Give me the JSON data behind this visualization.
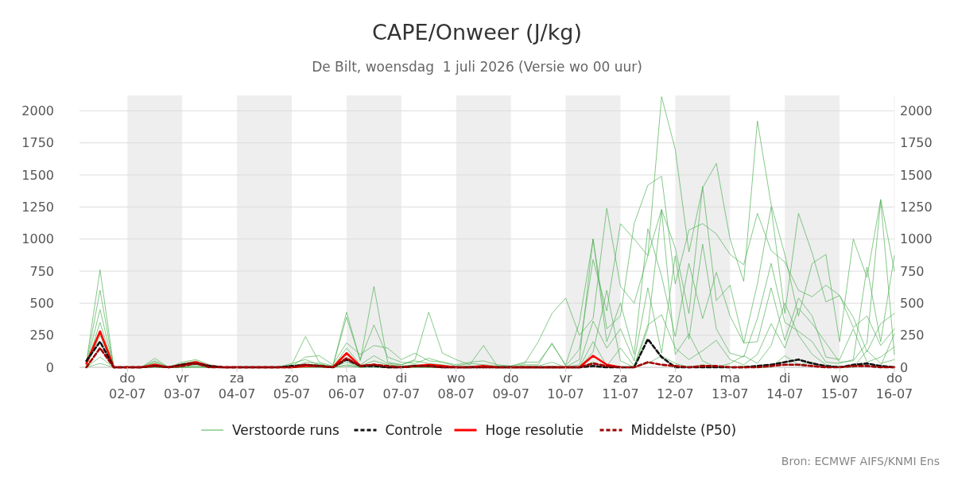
{
  "chart_data": {
    "type": "line",
    "title": "CAPE/Onweer (J/kg)",
    "subtitle": "De Bilt, woensdag  1 juli 2026 (Versie wo 00 uur)",
    "annotations": [
      "Bron: ECMWF AIFS/KNMI Ens"
    ],
    "x": [
      "2026-07-01T06:00",
      "2026-07-01T12:00",
      "2026-07-01T18:00",
      "2026-07-02T00:00",
      "2026-07-02T06:00",
      "2026-07-02T12:00",
      "2026-07-02T18:00",
      "2026-07-03T00:00",
      "2026-07-03T06:00",
      "2026-07-03T12:00",
      "2026-07-03T18:00",
      "2026-07-04T00:00",
      "2026-07-04T06:00",
      "2026-07-04T12:00",
      "2026-07-04T18:00",
      "2026-07-05T00:00",
      "2026-07-05T06:00",
      "2026-07-05T12:00",
      "2026-07-05T18:00",
      "2026-07-06T00:00",
      "2026-07-06T06:00",
      "2026-07-06T12:00",
      "2026-07-06T18:00",
      "2026-07-07T00:00",
      "2026-07-07T06:00",
      "2026-07-07T12:00",
      "2026-07-07T18:00",
      "2026-07-08T00:00",
      "2026-07-08T06:00",
      "2026-07-08T12:00",
      "2026-07-08T18:00",
      "2026-07-09T00:00",
      "2026-07-09T06:00",
      "2026-07-09T12:00",
      "2026-07-09T18:00",
      "2026-07-10T00:00",
      "2026-07-10T06:00",
      "2026-07-10T12:00",
      "2026-07-10T18:00",
      "2026-07-11T00:00",
      "2026-07-11T06:00",
      "2026-07-11T12:00",
      "2026-07-11T18:00",
      "2026-07-12T00:00",
      "2026-07-12T06:00",
      "2026-07-12T12:00",
      "2026-07-12T18:00",
      "2026-07-13T00:00",
      "2026-07-13T06:00",
      "2026-07-13T12:00",
      "2026-07-13T18:00",
      "2026-07-14T00:00",
      "2026-07-14T06:00",
      "2026-07-14T12:00",
      "2026-07-14T18:00",
      "2026-07-15T00:00",
      "2026-07-15T06:00",
      "2026-07-15T12:00",
      "2026-07-15T18:00",
      "2026-07-16T00:00"
    ],
    "series": [
      {
        "name": "Verstoorde runs",
        "color": "#4caf50",
        "values": [
          40,
          760,
          0,
          0,
          0,
          70,
          0,
          40,
          60,
          20,
          0,
          0,
          0,
          0,
          0,
          30,
          60,
          20,
          10,
          430,
          50,
          630,
          40,
          20,
          60,
          430,
          110,
          60,
          20,
          170,
          10,
          10,
          30,
          200,
          420,
          540,
          250,
          380,
          1240,
          630,
          500,
          870,
          2110,
          1700,
          900,
          1400,
          1590,
          1000,
          670,
          1920,
          1270,
          880,
          400,
          810,
          880,
          200,
          1000,
          700,
          1310,
          750
        ]
      },
      {
        "color": "#4caf50",
        "values": [
          30,
          600,
          0,
          0,
          0,
          50,
          0,
          30,
          50,
          10,
          0,
          0,
          0,
          0,
          0,
          20,
          240,
          40,
          10,
          390,
          60,
          330,
          80,
          40,
          30,
          70,
          40,
          20,
          40,
          50,
          20,
          10,
          40,
          40,
          180,
          20,
          350,
          1000,
          300,
          400,
          1120,
          1420,
          1490,
          650,
          1070,
          1120,
          1040,
          880,
          800,
          1200,
          910,
          820,
          600,
          550,
          640,
          560,
          310,
          400,
          170,
          300
        ]
      },
      {
        "color": "#4caf50",
        "values": [
          20,
          450,
          0,
          0,
          0,
          40,
          0,
          20,
          40,
          10,
          0,
          0,
          0,
          0,
          0,
          10,
          80,
          90,
          20,
          190,
          100,
          170,
          150,
          60,
          110,
          50,
          40,
          10,
          30,
          20,
          10,
          0,
          20,
          20,
          190,
          10,
          140,
          840,
          440,
          1120,
          1000,
          870,
          1230,
          930,
          420,
          1410,
          520,
          640,
          190,
          650,
          1250,
          420,
          1200,
          890,
          510,
          560,
          390,
          120,
          340,
          420
        ]
      },
      {
        "color": "#4caf50",
        "values": [
          10,
          350,
          0,
          0,
          0,
          30,
          0,
          10,
          30,
          0,
          0,
          0,
          0,
          0,
          0,
          0,
          40,
          30,
          0,
          150,
          20,
          90,
          30,
          20,
          50,
          30,
          20,
          0,
          10,
          10,
          0,
          0,
          10,
          10,
          40,
          0,
          60,
          1000,
          200,
          500,
          100,
          1080,
          710,
          240,
          810,
          380,
          740,
          400,
          190,
          200,
          620,
          210,
          540,
          400,
          80,
          60,
          300,
          40,
          80,
          160
        ]
      },
      {
        "color": "#4caf50",
        "values": [
          10,
          250,
          0,
          0,
          0,
          20,
          0,
          0,
          20,
          0,
          0,
          0,
          0,
          0,
          0,
          0,
          20,
          20,
          0,
          80,
          10,
          50,
          20,
          10,
          20,
          10,
          10,
          0,
          0,
          0,
          0,
          0,
          0,
          0,
          10,
          0,
          20,
          360,
          150,
          300,
          50,
          620,
          110,
          870,
          220,
          960,
          300,
          110,
          80,
          380,
          810,
          350,
          280,
          200,
          40,
          30,
          60,
          780,
          200,
          870
        ]
      },
      {
        "color": "#4caf50",
        "values": [
          0,
          150,
          0,
          0,
          0,
          10,
          0,
          0,
          10,
          0,
          0,
          0,
          0,
          0,
          0,
          0,
          10,
          10,
          0,
          40,
          0,
          20,
          10,
          0,
          10,
          0,
          0,
          0,
          0,
          0,
          0,
          0,
          0,
          0,
          0,
          0,
          0,
          200,
          10,
          150,
          10,
          330,
          410,
          150,
          60,
          130,
          210,
          60,
          20,
          100,
          340,
          150,
          460,
          340,
          190,
          40,
          50,
          190,
          1300,
          100
        ]
      },
      {
        "color": "#4caf50",
        "values": [
          0,
          80,
          0,
          0,
          0,
          0,
          0,
          0,
          0,
          0,
          0,
          0,
          0,
          0,
          0,
          0,
          0,
          0,
          0,
          20,
          0,
          10,
          0,
          0,
          0,
          0,
          0,
          0,
          0,
          0,
          0,
          0,
          0,
          0,
          0,
          0,
          0,
          120,
          600,
          50,
          0,
          300,
          1230,
          100,
          260,
          50,
          0,
          30,
          90,
          30,
          170,
          500,
          250,
          100,
          20,
          0,
          0,
          130,
          30,
          60
        ]
      },
      {
        "color": "#4caf50",
        "values": [
          0,
          30,
          0,
          0,
          0,
          0,
          0,
          0,
          0,
          0,
          0,
          0,
          0,
          0,
          0,
          0,
          0,
          0,
          0,
          10,
          0,
          0,
          0,
          0,
          0,
          0,
          0,
          0,
          0,
          0,
          0,
          0,
          0,
          0,
          0,
          0,
          0,
          40,
          0,
          0,
          0,
          30,
          90,
          30,
          0,
          20,
          0,
          0,
          10,
          0,
          0,
          90,
          20,
          40,
          0,
          10,
          0,
          30,
          10,
          260
        ]
      },
      {
        "name": "Controle",
        "color": "#111111",
        "line_style": "dashed",
        "values": [
          50,
          200,
          0,
          0,
          0,
          10,
          0,
          20,
          30,
          10,
          0,
          0,
          0,
          0,
          0,
          10,
          20,
          10,
          0,
          60,
          10,
          10,
          0,
          0,
          10,
          10,
          0,
          0,
          0,
          0,
          0,
          0,
          0,
          0,
          0,
          0,
          0,
          10,
          0,
          0,
          0,
          220,
          80,
          0,
          0,
          0,
          0,
          0,
          0,
          10,
          20,
          40,
          60,
          30,
          10,
          0,
          20,
          30,
          10,
          0
        ]
      },
      {
        "name": "Hoge resolutie",
        "color": "#ff0000",
        "line_style": "solid",
        "values": [
          30,
          280,
          0,
          0,
          0,
          20,
          0,
          20,
          40,
          10,
          0,
          0,
          0,
          0,
          0,
          0,
          10,
          10,
          0,
          110,
          10,
          20,
          0,
          0,
          10,
          20,
          10,
          0,
          0,
          10,
          0,
          0,
          0,
          0,
          0,
          0,
          0,
          90,
          20,
          0,
          null,
          null,
          null,
          null,
          null,
          null,
          null,
          null,
          null,
          null,
          null,
          null,
          null,
          null,
          null,
          null,
          null,
          null,
          null,
          null
        ]
      },
      {
        "name": "Middelste (P50)",
        "color": "#a00000",
        "line_style": "dashed",
        "values": [
          0,
          150,
          0,
          0,
          0,
          10,
          0,
          10,
          30,
          0,
          0,
          0,
          0,
          0,
          0,
          0,
          20,
          10,
          0,
          70,
          10,
          20,
          10,
          0,
          10,
          10,
          0,
          0,
          0,
          0,
          0,
          0,
          0,
          0,
          0,
          0,
          0,
          30,
          10,
          0,
          0,
          40,
          20,
          10,
          0,
          10,
          10,
          0,
          0,
          0,
          10,
          20,
          20,
          10,
          0,
          0,
          10,
          10,
          0,
          0
        ]
      }
    ],
    "xlim": [
      "2026-07-01T03:00",
      "2026-07-16T00:00"
    ],
    "xticks": [
      {
        "value": "2026-07-02T00:00",
        "label": "do 02-07"
      },
      {
        "value": "2026-07-03T00:00",
        "label": "vr 03-07"
      },
      {
        "value": "2026-07-04T00:00",
        "label": "za 04-07"
      },
      {
        "value": "2026-07-05T00:00",
        "label": "zo 05-07"
      },
      {
        "value": "2026-07-06T00:00",
        "label": "ma 06-07"
      },
      {
        "value": "2026-07-07T00:00",
        "label": "di 07-07"
      },
      {
        "value": "2026-07-08T00:00",
        "label": "wo 08-07"
      },
      {
        "value": "2026-07-09T00:00",
        "label": "do 09-07"
      },
      {
        "value": "2026-07-10T00:00",
        "label": "vr 10-07"
      },
      {
        "value": "2026-07-11T00:00",
        "label": "za 11-07"
      },
      {
        "value": "2026-07-12T00:00",
        "label": "zo 12-07"
      },
      {
        "value": "2026-07-13T00:00",
        "label": "ma 13-07"
      },
      {
        "value": "2026-07-14T00:00",
        "label": "di 14-07"
      },
      {
        "value": "2026-07-15T00:00",
        "label": "wo 15-07"
      },
      {
        "value": "2026-07-16T00:00",
        "label": "do 16-07"
      }
    ],
    "ylim": [
      0,
      2120
    ],
    "yticks": [
      0,
      250,
      500,
      750,
      1000,
      1250,
      1500,
      1750,
      2000
    ],
    "y2lim": [
      0,
      2120
    ],
    "y2ticks": [
      0,
      250,
      500,
      750,
      1000,
      1250,
      1500,
      1750,
      2000
    ],
    "bands": [
      {
        "axis": "x",
        "from": "2026-07-02T00:00",
        "to": "2026-07-03T00:00",
        "color": "#eeeeee"
      },
      {
        "axis": "x",
        "from": "2026-07-04T00:00",
        "to": "2026-07-05T00:00",
        "color": "#eeeeee"
      },
      {
        "axis": "x",
        "from": "2026-07-06T00:00",
        "to": "2026-07-07T00:00",
        "color": "#eeeeee"
      },
      {
        "axis": "x",
        "from": "2026-07-08T00:00",
        "to": "2026-07-09T00:00",
        "color": "#eeeeee"
      },
      {
        "axis": "x",
        "from": "2026-07-10T00:00",
        "to": "2026-07-11T00:00",
        "color": "#eeeeee"
      },
      {
        "axis": "x",
        "from": "2026-07-12T00:00",
        "to": "2026-07-13T00:00",
        "color": "#eeeeee"
      },
      {
        "axis": "x",
        "from": "2026-07-14T00:00",
        "to": "2026-07-15T00:00",
        "color": "#eeeeee"
      }
    ],
    "grid": "y",
    "legend": "bottom"
  }
}
